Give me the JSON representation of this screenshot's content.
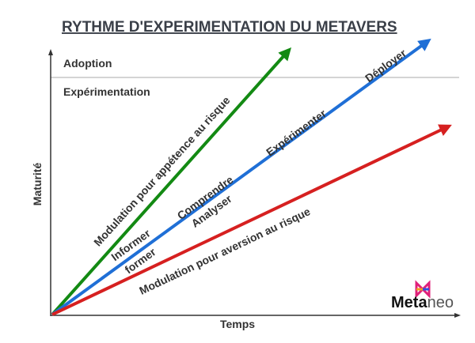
{
  "title": "RYTHME D'EXPERIMENTATION DU METAVERS",
  "y_axis_label": "Maturité",
  "x_axis_label": "Temps",
  "zones": {
    "top": "Adoption",
    "bottom": "Expérimentation"
  },
  "arrows": {
    "green": {
      "label": "Modulation pour appétence au risque",
      "color": "#138a13"
    },
    "blue": {
      "labels_above": [
        "Informer",
        "Comprendre",
        "Expérimenter",
        "Déployer"
      ],
      "labels_below": [
        "former",
        "Analyser"
      ],
      "color": "#1f6fd6"
    },
    "red": {
      "label": "Modulation pour aversion au risque",
      "color": "#d62020"
    }
  },
  "logo": {
    "bold": "Meta",
    "light": "neo"
  }
}
